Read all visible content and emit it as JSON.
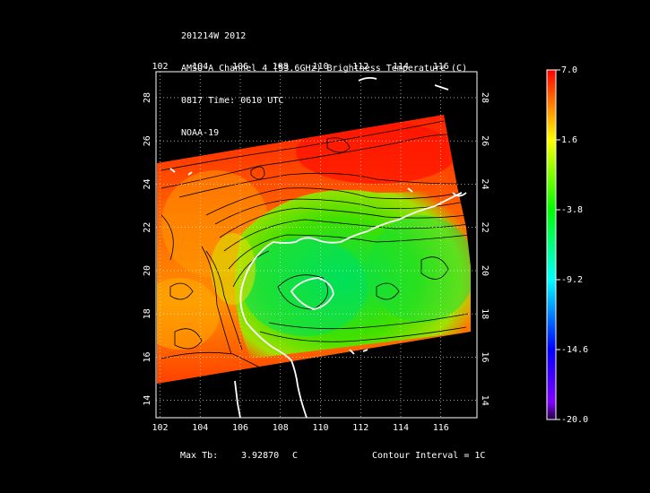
{
  "title_lines": [
    "201214W 2012",
    "AMSU-A Channel 4 (53.6GHz) Brightness Temperature (C)",
    "0817 Time: 0610 UTC",
    "NOAA-19"
  ],
  "map": {
    "lon_ticks": [
      "102",
      "104",
      "106",
      "108",
      "110",
      "112",
      "114",
      "116"
    ],
    "lat_ticks": [
      "14",
      "16",
      "18",
      "20",
      "22",
      "24",
      "26",
      "28"
    ],
    "lon_range": [
      101.8,
      117.8
    ],
    "lat_range": [
      13.2,
      29.2
    ]
  },
  "colorbar": {
    "labels": [
      "7.0",
      "1.6",
      "-3.8",
      "-9.2",
      "-14.6",
      "-20.0"
    ],
    "range": [
      -20.0,
      7.0
    ],
    "colors": [
      "#ff0000",
      "#ffff00",
      "#00ff00",
      "#00ffff",
      "#0000ff",
      "#7f00ff",
      "#200040"
    ]
  },
  "footer": {
    "max_label": "Max Tb:",
    "max_value": "3.92870",
    "max_unit": "C",
    "contour": "Contour Interval = 1C"
  }
}
